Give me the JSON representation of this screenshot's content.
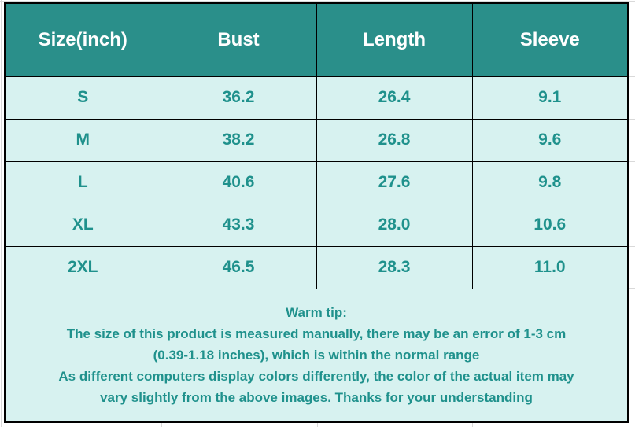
{
  "colors": {
    "header_bg": "#2a8f8a",
    "header_text": "#ffffff",
    "cell_bg": "#d7f2f0",
    "cell_text": "#1f918c",
    "border": "#000000",
    "gridline": "#d9d9d9"
  },
  "size_chart": {
    "headers": [
      "Size(inch)",
      "Bust",
      "Length",
      "Sleeve"
    ],
    "rows": [
      [
        "S",
        "36.2",
        "26.4",
        "9.1"
      ],
      [
        "M",
        "38.2",
        "26.8",
        "9.6"
      ],
      [
        "L",
        "40.6",
        "27.6",
        "9.8"
      ],
      [
        "XL",
        "43.3",
        "28.0",
        "10.6"
      ],
      [
        "2XL",
        "46.5",
        "28.3",
        "11.0"
      ]
    ],
    "warm_tip": {
      "title": "Warm tip:",
      "lines": [
        "The size of this product is measured manually, there may be an error of 1-3 cm",
        "(0.39-1.18 inches), which is within the normal range",
        "As different computers display colors differently, the color of the actual item may",
        "vary slightly from the above images. Thanks for your understanding"
      ]
    }
  },
  "chart_data": {
    "type": "table",
    "title": "Garment size chart (inches)",
    "columns": [
      "Size(inch)",
      "Bust",
      "Length",
      "Sleeve"
    ],
    "rows": [
      {
        "size": "S",
        "bust": 36.2,
        "length": 26.4,
        "sleeve": 9.1
      },
      {
        "size": "M",
        "bust": 38.2,
        "length": 26.8,
        "sleeve": 9.6
      },
      {
        "size": "L",
        "bust": 40.6,
        "length": 27.6,
        "sleeve": 9.8
      },
      {
        "size": "XL",
        "bust": 43.3,
        "length": 28.0,
        "sleeve": 10.6
      },
      {
        "size": "2XL",
        "bust": 46.5,
        "length": 28.3,
        "sleeve": 11.0
      }
    ],
    "note": "Warm tip: The size of this product is measured manually, there may be an error of 1-3 cm (0.39-1.18 inches), which is within the normal range. As different computers display colors differently, the color of the actual item may vary slightly from the above images. Thanks for your understanding"
  }
}
